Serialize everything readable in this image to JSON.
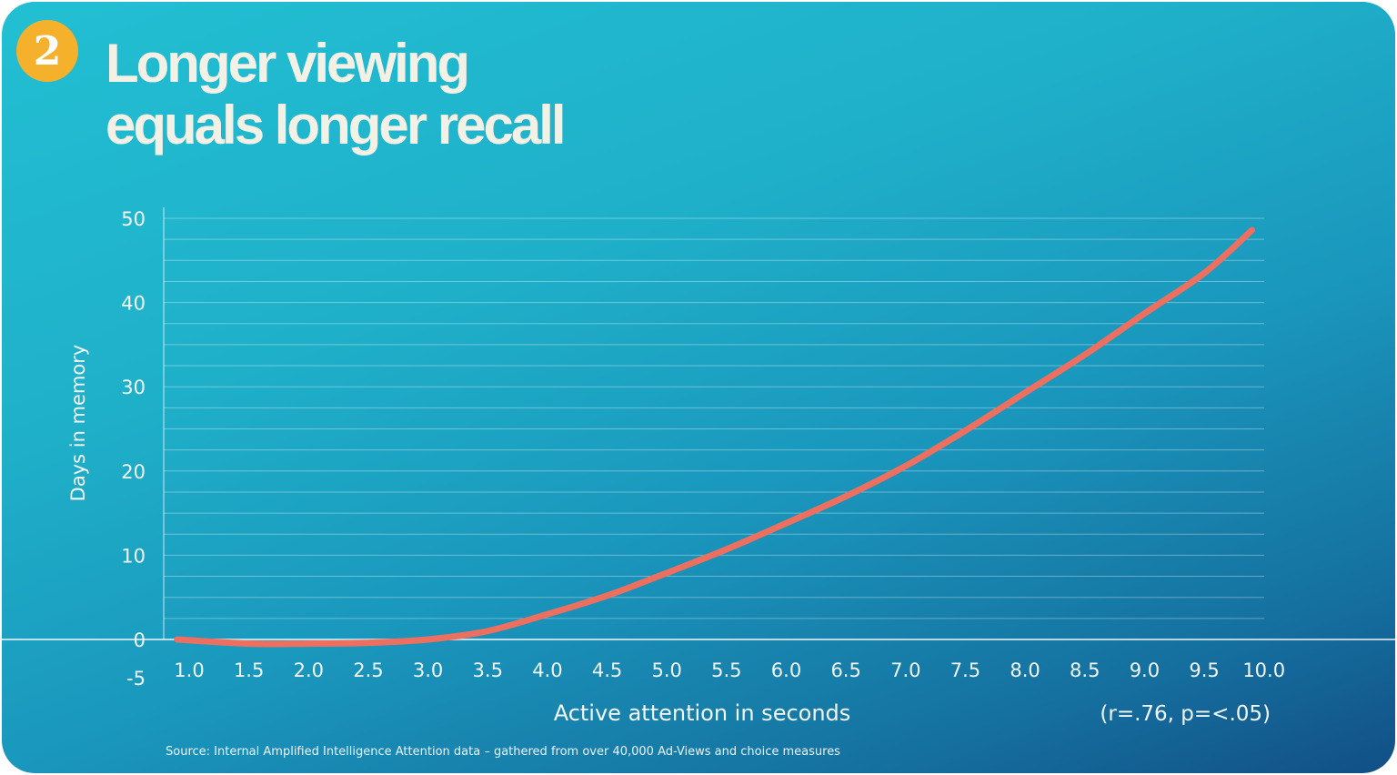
{
  "badge": "2",
  "title_line1": "Longer viewing",
  "title_line2": "equals longer recall",
  "source": "Source: Internal Amplified Intelligence Attention data – gathered from over 40,000 Ad-Views and choice measures",
  "colors": {
    "line": "#ec6f5f",
    "badge": "#f6b12c"
  },
  "chart_data": {
    "type": "line",
    "title": "Longer viewing equals longer recall",
    "xlabel": "Active attention in seconds",
    "ylabel": "Days in memory",
    "annotation": "(r=.76, p=<.05)",
    "xlim": [
      1.0,
      10.0
    ],
    "ylim": [
      -5,
      50
    ],
    "xticks": [
      "1.0",
      "1.5",
      "2.0",
      "2.5",
      "3.0",
      "3.5",
      "4.0",
      "4.5",
      "5.0",
      "5.5",
      "6.0",
      "6.5",
      "7.0",
      "7.5",
      "8.0",
      "8.5",
      "9.0",
      "9.5",
      "10.0"
    ],
    "yticks": [
      "50",
      "40",
      "30",
      "20",
      "10",
      "0",
      "-5"
    ],
    "grid": true,
    "series": [
      {
        "name": "Days in memory",
        "x": [
          0.9,
          1.5,
          2.0,
          2.5,
          3.0,
          3.5,
          4.0,
          4.5,
          5.0,
          5.5,
          6.0,
          6.5,
          7.0,
          7.5,
          8.0,
          8.5,
          9.0,
          9.5,
          9.9
        ],
        "y": [
          0,
          -0.5,
          -0.5,
          -0.4,
          0,
          1,
          3,
          5.2,
          7.9,
          10.7,
          13.8,
          17,
          20.6,
          24.8,
          29.3,
          33.8,
          38.7,
          43.5,
          48.6
        ]
      }
    ]
  }
}
